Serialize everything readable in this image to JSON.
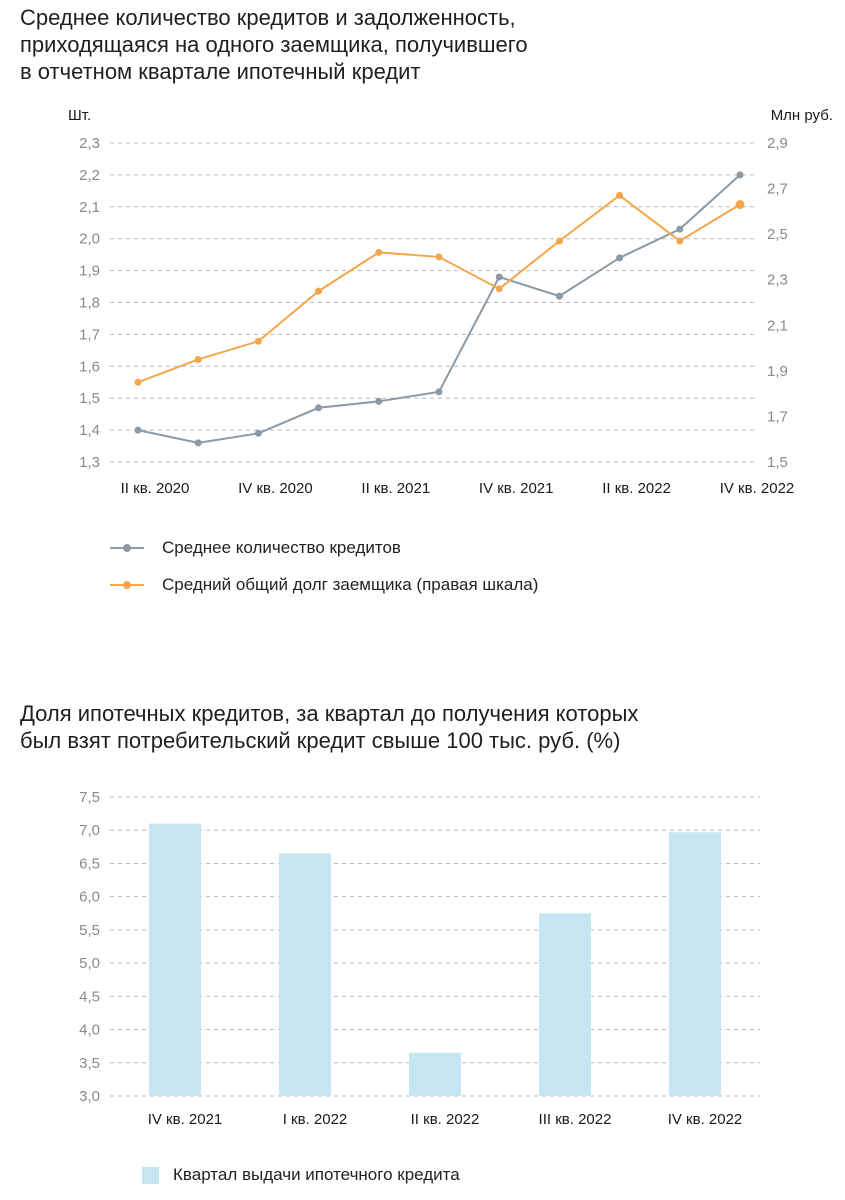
{
  "colors": {
    "series_count": "#8a9aa6",
    "series_debt": "#f5a64a",
    "bar": "#c6e7f2",
    "grid": "#b9b9b9",
    "tick_text": "#8a8a8a",
    "axis_text": "#1a1a1a"
  },
  "chart_data": [
    {
      "type": "line",
      "title": "Среднее количество кредитов и задолженность,\nприходящаяся на одного заемщика, получившего\nв отчетном квартале ипотечный кредит",
      "y_left_unit": "Шт.",
      "y_right_unit": "Млн руб.",
      "ylim_left": [
        1.3,
        2.3
      ],
      "ylim_right": [
        1.5,
        2.9
      ],
      "yticks_left": [
        "2,3",
        "2,2",
        "2,1",
        "2,0",
        "1,9",
        "1,8",
        "1,7",
        "1,6",
        "1,5",
        "1,4",
        "1,3"
      ],
      "yticks_right": [
        "2,9",
        "2,7",
        "2,5",
        "2,3",
        "2,1",
        "1,9",
        "1,7",
        "1,5"
      ],
      "x_tick_labels": [
        "II кв. 2020",
        "IV кв. 2020",
        "II кв. 2021",
        "IV кв. 2021",
        "II кв. 2022",
        "IV кв. 2022"
      ],
      "series": [
        {
          "name": "Среднее количество кредитов",
          "axis": "left",
          "values": [
            1.4,
            1.36,
            1.39,
            1.47,
            1.49,
            1.52,
            1.88,
            1.82,
            1.94,
            2.03,
            2.2
          ]
        },
        {
          "name": "Средний общий долг заемщика (правая шкала)",
          "axis": "right",
          "values": [
            1.85,
            1.95,
            2.03,
            2.25,
            2.42,
            2.4,
            2.26,
            2.47,
            2.67,
            2.47,
            2.63
          ]
        }
      ]
    },
    {
      "type": "bar",
      "title": "Доля ипотечных кредитов, за квартал до получения которых\nбыл взят потребительский кредит свыше 100 тыс. руб. (%)",
      "ylim": [
        3.0,
        7.5
      ],
      "yticks": [
        "7,5",
        "7,0",
        "6,5",
        "6,0",
        "5,5",
        "5,0",
        "4,5",
        "4,0",
        "3,5",
        "3,0"
      ],
      "categories": [
        "IV кв. 2021",
        "I кв. 2022",
        "II кв. 2022",
        "III кв. 2022",
        "IV кв. 2022"
      ],
      "values": [
        7.1,
        6.65,
        3.65,
        5.75,
        6.97
      ],
      "legend": "Квартал выдачи ипотечного кредита"
    }
  ]
}
